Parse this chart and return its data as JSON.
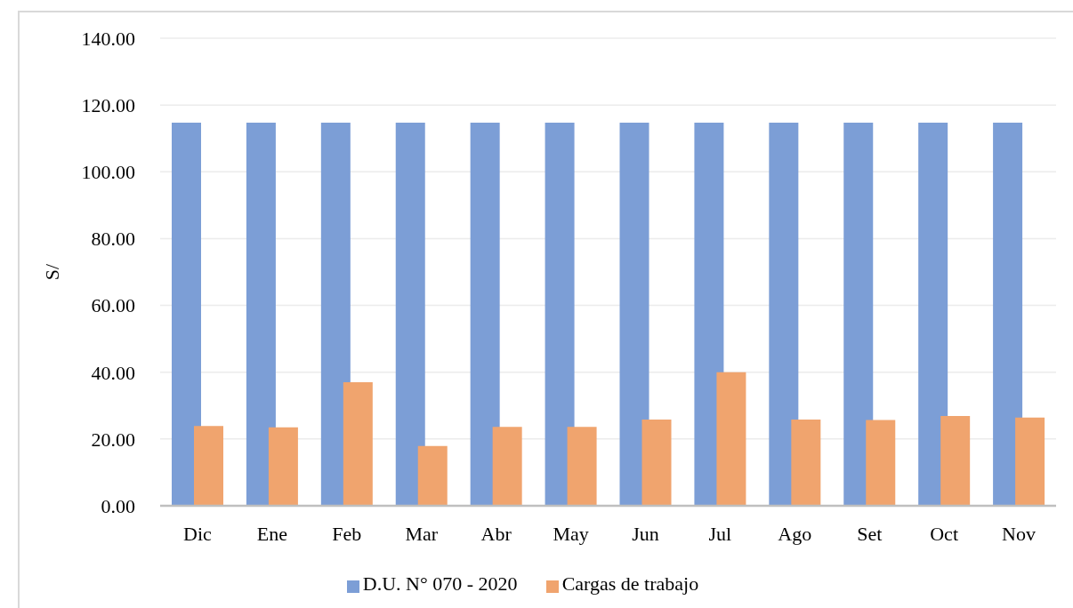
{
  "chart_data": {
    "type": "bar",
    "ylabel": "S/",
    "categories": [
      "Dic",
      "Ene",
      "Feb",
      "Mar",
      "Abr",
      "May",
      "Jun",
      "Jul",
      "Ago",
      "Set",
      "Oct",
      "Nov"
    ],
    "series": [
      {
        "name": "D.U. N° 070 - 2020",
        "color": "#7c9ed6",
        "values": [
          114.7,
          114.7,
          114.7,
          114.7,
          114.7,
          114.7,
          114.7,
          114.7,
          114.7,
          114.7,
          114.7,
          114.7
        ]
      },
      {
        "name": "Cargas de trabajo",
        "color": "#f0a46e",
        "values": [
          23.9,
          23.5,
          37.0,
          17.9,
          23.6,
          23.6,
          25.8,
          40.0,
          25.8,
          25.7,
          26.9,
          26.4
        ]
      }
    ],
    "ylim": [
      0,
      140
    ],
    "yticks": [
      {
        "value": 0,
        "label": "0.00"
      },
      {
        "value": 20,
        "label": "20.00"
      },
      {
        "value": 40,
        "label": "40.00"
      },
      {
        "value": 60,
        "label": "60.00"
      },
      {
        "value": 80,
        "label": "80.00"
      },
      {
        "value": 100,
        "label": "100.00"
      },
      {
        "value": 120,
        "label": "120.00"
      },
      {
        "value": 140,
        "label": "140.00"
      }
    ],
    "grid": "y",
    "legend": "bottom"
  }
}
